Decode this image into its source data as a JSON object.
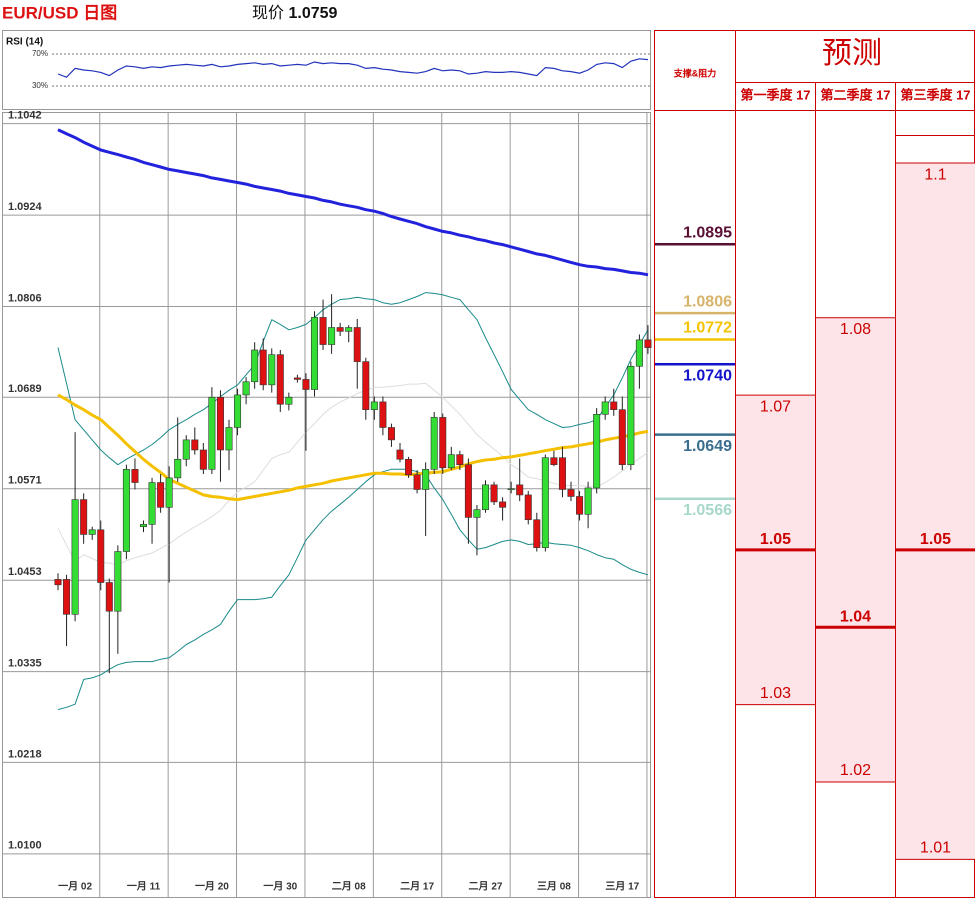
{
  "chart_data": [
    {
      "type": "candlestick",
      "title": "EUR/USD 日图",
      "price_label": "现价",
      "price": 1.0759,
      "categories": [
        null,
        null,
        "一月 02",
        null,
        null,
        null,
        null,
        null,
        null,
        null,
        "一月 11",
        null,
        null,
        null,
        null,
        null,
        null,
        null,
        "一月 20",
        null,
        null,
        null,
        null,
        null,
        null,
        null,
        "一月 30",
        null,
        null,
        null,
        null,
        null,
        null,
        null,
        "二月 08",
        null,
        null,
        null,
        null,
        null,
        null,
        null,
        "二月 17",
        null,
        null,
        null,
        null,
        null,
        null,
        null,
        "二月 27",
        null,
        null,
        null,
        null,
        null,
        null,
        null,
        "三月 08",
        null,
        null,
        null,
        null,
        null,
        null,
        null,
        "三月 17",
        null,
        null,
        null
      ],
      "open": [
        1.0454,
        1.0454,
        1.0409,
        1.0557,
        1.0512,
        1.0518,
        1.045,
        1.0413,
        1.049,
        1.0596,
        1.0522,
        1.0525,
        1.0579,
        1.0547,
        1.0585,
        1.0609,
        1.0634,
        1.0621,
        1.0596,
        1.0689,
        1.0621,
        1.065,
        1.0692,
        1.0709,
        1.075,
        1.0705,
        1.0744,
        1.068,
        1.0714,
        1.0712,
        1.0699,
        1.0792,
        1.0757,
        1.0779,
        1.0774,
        1.0779,
        1.0735,
        1.0673,
        1.0683,
        1.065,
        1.0621,
        1.0609,
        1.0589,
        1.057,
        1.0596,
        1.0663,
        1.0598,
        1.0615,
        1.0602,
        1.0534,
        1.0544,
        1.0576,
        1.0554,
        1.057,
        1.0576,
        1.0563,
        1.0531,
        1.0495,
        1.0611,
        1.0611,
        1.057,
        1.0561,
        1.0538,
        1.0572,
        1.0667,
        1.0683,
        1.0673,
        1.0602,
        1.0729,
        1.0763
      ],
      "high": [
        1.0462,
        1.046,
        1.0644,
        1.0565,
        1.0522,
        1.053,
        1.0455,
        1.0498,
        1.0602,
        1.061,
        1.053,
        1.0585,
        1.059,
        1.06,
        1.0663,
        1.064,
        1.065,
        1.063,
        1.0702,
        1.0698,
        1.066,
        1.07,
        1.0715,
        1.076,
        1.0765,
        1.0752,
        1.075,
        1.0695,
        1.0718,
        1.072,
        1.08,
        1.0815,
        1.0822,
        1.0785,
        1.0782,
        1.079,
        1.074,
        1.069,
        1.069,
        1.0655,
        1.063,
        1.0612,
        1.0595,
        1.0605,
        1.067,
        1.0668,
        1.0625,
        1.062,
        1.061,
        1.055,
        1.0582,
        1.058,
        1.056,
        1.058,
        1.061,
        1.0568,
        1.054,
        1.0615,
        1.062,
        1.0625,
        1.058,
        1.0568,
        1.058,
        1.0675,
        1.069,
        1.07,
        1.069,
        1.0735,
        1.077,
        1.0782
      ],
      "low": [
        1.044,
        1.0368,
        1.04,
        1.05,
        1.0505,
        1.044,
        1.0333,
        1.0358,
        1.048,
        1.057,
        1.0515,
        1.05,
        1.054,
        1.045,
        1.058,
        1.06,
        1.0615,
        1.059,
        1.059,
        1.058,
        1.0595,
        1.064,
        1.068,
        1.07,
        1.0698,
        1.0695,
        1.067,
        1.0672,
        1.0708,
        1.062,
        1.069,
        1.075,
        1.0745,
        1.0768,
        1.076,
        1.07,
        1.066,
        1.066,
        1.064,
        1.0625,
        1.0605,
        1.0585,
        1.0565,
        1.051,
        1.059,
        1.059,
        1.0595,
        1.0595,
        1.05,
        1.0485,
        1.054,
        1.055,
        1.053,
        1.0565,
        1.0555,
        1.0525,
        1.049,
        1.049,
        1.06,
        1.056,
        1.0555,
        1.053,
        1.052,
        1.0565,
        1.066,
        1.0665,
        1.0595,
        1.0595,
        1.07,
        1.0745
      ],
      "close": [
        1.0447,
        1.0409,
        1.0557,
        1.0512,
        1.0518,
        1.045,
        1.0413,
        1.049,
        1.0596,
        1.0579,
        1.0525,
        1.0579,
        1.0547,
        1.0585,
        1.0609,
        1.0634,
        1.0621,
        1.0596,
        1.0689,
        1.0621,
        1.065,
        1.0692,
        1.0709,
        1.075,
        1.0705,
        1.0744,
        1.068,
        1.0689,
        1.0712,
        1.0699,
        1.0792,
        1.0757,
        1.0779,
        1.0774,
        1.0779,
        1.0735,
        1.0673,
        1.0683,
        1.065,
        1.0634,
        1.0609,
        1.0589,
        1.057,
        1.0596,
        1.0663,
        1.0598,
        1.0615,
        1.0602,
        1.0534,
        1.0544,
        1.0576,
        1.0554,
        1.0547,
        1.0571,
        1.0563,
        1.0531,
        1.0495,
        1.0611,
        1.0602,
        1.057,
        1.0561,
        1.0538,
        1.0572,
        1.0667,
        1.0683,
        1.0673,
        1.0602,
        1.0729,
        1.0763,
        1.0753
      ],
      "up_color": "#33dd33",
      "down_color": "#dd1111",
      "overlays": [
        {
          "color": "#dddddd",
          "values": [
            1.052,
            1.0498,
            1.0477,
            1.0486,
            1.0481,
            1.0476,
            1.0475,
            1.0473,
            1.0478,
            1.0482,
            1.0485,
            1.0488,
            1.0494,
            1.05,
            1.0508,
            1.0515,
            1.0522,
            1.0528,
            1.0535,
            1.0543,
            1.0556,
            1.0567,
            1.0573,
            1.058,
            1.0595,
            1.061,
            1.0615,
            1.0618,
            1.0631,
            1.0644,
            1.0655,
            1.0667,
            1.0676,
            1.0683,
            1.0688,
            1.0694,
            1.0698,
            1.0702,
            1.0702,
            1.0703,
            1.0704,
            1.0706,
            1.0706,
            1.0707,
            1.0698,
            1.0689,
            1.0678,
            1.0667,
            1.0654,
            1.0641,
            1.0631,
            1.0622,
            1.0613,
            1.0602,
            1.0595,
            1.0586,
            1.0584,
            1.0581,
            1.0578,
            1.0575,
            1.0575,
            1.0575,
            1.0574,
            1.0573,
            1.0579,
            1.0586,
            1.0594,
            1.0603,
            1.061,
            1.0618
          ]
        },
        {
          "color": "#1a8a8a",
          "values": [
            1.0753,
            1.0707,
            1.066,
            1.0647,
            1.0634,
            1.0621,
            1.0611,
            1.0602,
            1.0609,
            1.0615,
            1.0621,
            1.0628,
            1.0637,
            1.0647,
            1.0654,
            1.066,
            1.0667,
            1.0673,
            1.0681,
            1.069,
            1.0698,
            1.0705,
            1.0718,
            1.0731,
            1.0761,
            1.0789,
            1.0783,
            1.0776,
            1.0779,
            1.0783,
            1.0792,
            1.0802,
            1.0809,
            1.0815,
            1.0816,
            1.0818,
            1.0816,
            1.0815,
            1.0811,
            1.0809,
            1.0811,
            1.0815,
            1.0819,
            1.0824,
            1.0823,
            1.0821,
            1.0818,
            1.0815,
            1.0802,
            1.0789,
            1.0766,
            1.0744,
            1.0722,
            1.0699,
            1.0686,
            1.0673,
            1.0667,
            1.066,
            1.0655,
            1.065,
            1.0651,
            1.0654,
            1.0656,
            1.066,
            1.0676,
            1.0692,
            1.0714,
            1.0738,
            1.0757,
            1.0776
          ]
        },
        {
          "color": "#1a8a8a",
          "values": [
            1.0286,
            1.0289,
            1.0293,
            1.0325,
            1.0327,
            1.0331,
            1.0338,
            1.0344,
            1.0347,
            1.0348,
            1.0348,
            1.0348,
            1.0351,
            1.0353,
            1.0361,
            1.037,
            1.0376,
            1.0383,
            1.0389,
            1.0396,
            1.0413,
            1.0428,
            1.0428,
            1.0428,
            1.0429,
            1.0431,
            1.0446,
            1.046,
            1.0482,
            1.0505,
            1.0518,
            1.0531,
            1.0542,
            1.0551,
            1.056,
            1.057,
            1.058,
            1.0589,
            1.0593,
            1.0596,
            1.0596,
            1.0596,
            1.0593,
            1.0589,
            1.0572,
            1.0557,
            1.0538,
            1.0518,
            1.0505,
            1.0493,
            1.0495,
            1.0499,
            1.0503,
            1.0505,
            1.0503,
            1.0499,
            1.05,
            1.0502,
            1.05,
            1.0499,
            1.0498,
            1.0495,
            1.0491,
            1.0486,
            1.0482,
            1.048,
            1.0473,
            1.0467,
            1.0463,
            1.046
          ]
        },
        {
          "color": "#f5c000",
          "values": [
            1.0692,
            1.0686,
            1.0679,
            1.0673,
            1.0666,
            1.066,
            1.065,
            1.064,
            1.0629,
            1.0619,
            1.0609,
            1.06,
            1.0592,
            1.0583,
            1.0578,
            1.0573,
            1.0568,
            1.0563,
            1.0561,
            1.056,
            1.0558,
            1.0557,
            1.0559,
            1.0561,
            1.0563,
            1.0565,
            1.0567,
            1.0569,
            1.0572,
            1.0574,
            1.0576,
            1.0578,
            1.0581,
            1.0583,
            1.0585,
            1.0587,
            1.0589,
            1.0591,
            1.0591,
            1.059,
            1.059,
            1.0589,
            1.059,
            1.0591,
            1.0592,
            1.0593,
            1.0596,
            1.0599,
            1.0603,
            1.0606,
            1.0608,
            1.0609,
            1.0611,
            1.0612,
            1.0614,
            1.0616,
            1.0618,
            1.062,
            1.0622,
            1.0624,
            1.0625,
            1.0627,
            1.0629,
            1.0631,
            1.0634,
            1.0636,
            1.0638,
            1.064,
            1.0643,
            1.0645
          ]
        },
        {
          "color": "#2222dd",
          "values": [
            1.1034,
            1.1029,
            1.1024,
            1.1018,
            1.1013,
            1.1008,
            1.1005,
            1.1002,
            1.0999,
            1.0996,
            1.0992,
            1.0989,
            1.0986,
            1.0983,
            1.0981,
            1.0979,
            1.0977,
            1.0975,
            1.0972,
            1.097,
            1.0968,
            1.0966,
            1.0964,
            1.0961,
            1.0959,
            1.0957,
            1.0955,
            1.0952,
            1.095,
            1.0948,
            1.0946,
            1.0943,
            1.0941,
            1.0938,
            1.0936,
            1.0934,
            1.0931,
            1.0929,
            1.0926,
            1.0922,
            1.0919,
            1.0916,
            1.0913,
            1.0909,
            1.0906,
            1.0903,
            1.0901,
            1.0898,
            1.0896,
            1.0893,
            1.0891,
            1.0888,
            1.0886,
            1.0883,
            1.088,
            1.0877,
            1.0874,
            1.0872,
            1.0869,
            1.0866,
            1.0863,
            1.086,
            1.0858,
            1.0857,
            1.0855,
            1.0854,
            1.0852,
            1.085,
            1.0849,
            1.0847
          ]
        }
      ],
      "ylim": [
        1.0043,
        1.1057
      ],
      "yticks": [
        1.1042,
        1.0924,
        1.0806,
        1.0689,
        1.0571,
        1.0453,
        1.0335,
        1.0218,
        {
          "value": 1.01,
          "label": "1.0100"
        }
      ],
      "grid": true,
      "rsi": {
        "title": "RSI (14)",
        "color": "#2233bb",
        "values": [
          45,
          41,
          52,
          50,
          49,
          47,
          43,
          50,
          55,
          54,
          52,
          54,
          53,
          55,
          56,
          57,
          56,
          55,
          57,
          54,
          55,
          57,
          58,
          59,
          57,
          58,
          55,
          56,
          57,
          56,
          60,
          58,
          59,
          58,
          58,
          56,
          52,
          53,
          51,
          50,
          48,
          47,
          46,
          48,
          52,
          49,
          50,
          49,
          45,
          46,
          48,
          47,
          47,
          48,
          47,
          45,
          43,
          53,
          52,
          49,
          48,
          46,
          50,
          57,
          59,
          58,
          53,
          61,
          64,
          63
        ],
        "ylim": [
          0,
          100
        ],
        "yticks": [
          {
            "value": 70,
            "label": "70%"
          },
          {
            "value": 30,
            "label": "30%"
          }
        ]
      }
    },
    {
      "type": "forecast",
      "title": "预测",
      "levels_title": "支撑&阻力",
      "levels": [
        1.0895,
        1.0806,
        1.0772,
        1.074,
        1.0649,
        1.0566
      ],
      "level_labels": [
        "1.0895",
        "1.0806",
        "1.0772",
        "1.0740",
        "1.0649",
        "1.0566"
      ],
      "level_colors": [
        "#5a0f35",
        "#d8b46a",
        "#f5c400",
        "#1414c8",
        "#3a6e8e",
        "#a8d8cc"
      ],
      "categories": [
        "第一季度 17",
        "第二季度 17",
        "第三季度 17"
      ],
      "high": [
        1.07,
        1.08,
        1.1
      ],
      "mid": [
        1.05,
        1.04,
        1.05
      ],
      "low": [
        1.03,
        1.02,
        1.01
      ],
      "ylim": [
        1.005,
        1.1066
      ],
      "color": "#cc0000",
      "band_color": "#fde4e8"
    }
  ]
}
